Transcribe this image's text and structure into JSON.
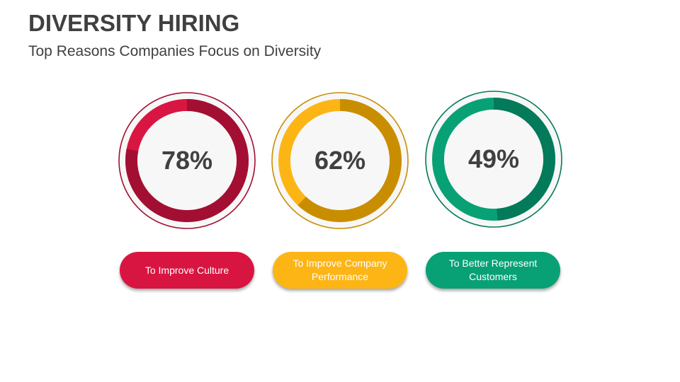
{
  "header": {
    "title": "DIVERSITY HIRING",
    "subtitle": "Top Reasons Companies Focus on Diversity"
  },
  "items": [
    {
      "value_label": "78%",
      "value": 78,
      "label": "To Improve Culture",
      "colors": {
        "primary": "#A30F32",
        "secondary": "#D91542",
        "outline": "#A30F32",
        "pill": "#D81541"
      }
    },
    {
      "value_label": "62%",
      "value": 62,
      "label": "To Improve Company Performance",
      "colors": {
        "primary": "#C98E00",
        "secondary": "#FDB515",
        "outline": "#C98E00",
        "pill": "#FDB515"
      }
    },
    {
      "value_label": "49%",
      "value": 49,
      "label": "To Better Represent Customers",
      "colors": {
        "primary": "#037A5A",
        "secondary": "#08A176",
        "outline": "#037A5A",
        "pill": "#08A176"
      }
    }
  ],
  "chart_data": {
    "type": "pie",
    "title": "DIVERSITY HIRING",
    "subtitle": "Top Reasons Companies Focus on Diversity",
    "categories": [
      "To Improve Culture",
      "To Improve Company Performance",
      "To Better Represent Customers"
    ],
    "values": [
      78,
      62,
      49
    ],
    "unit": "%",
    "style": "three donut progress rings, each showing one percentage out of 100"
  }
}
